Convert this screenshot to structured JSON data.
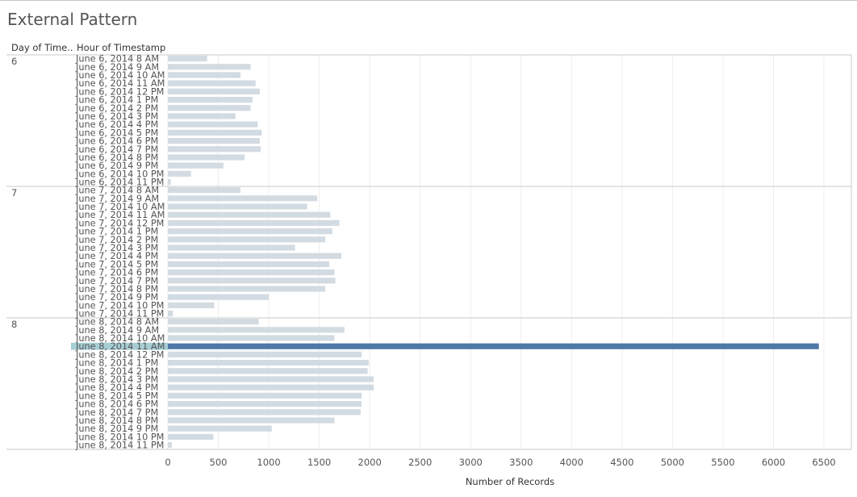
{
  "title": "External Pattern",
  "headers": {
    "day": "Day of Time..",
    "hour": "Hour of Timestamp"
  },
  "colors": {
    "bar": "#d3dbe2",
    "highlight_bar": "#4e79a7",
    "highlight_row": "#a6cdd4",
    "grid": "#eeeeee",
    "divider": "#c8c8c8"
  },
  "chart_data": {
    "type": "bar",
    "orientation": "horizontal",
    "xlabel": "Number of Records",
    "xlim": [
      0,
      6500
    ],
    "xticks": [
      0,
      500,
      1000,
      1500,
      2000,
      2500,
      3000,
      3500,
      4000,
      4500,
      5000,
      5500,
      6000,
      6500
    ],
    "grid": true,
    "groups": [
      {
        "day": "6",
        "rows": [
          {
            "label": "June 6, 2014 8 AM",
            "value": 390
          },
          {
            "label": "June 6, 2014 9 AM",
            "value": 820
          },
          {
            "label": "June 6, 2014 10 AM",
            "value": 720
          },
          {
            "label": "June 6, 2014 11 AM",
            "value": 870
          },
          {
            "label": "June 6, 2014 12 PM",
            "value": 910
          },
          {
            "label": "June 6, 2014 1 PM",
            "value": 840
          },
          {
            "label": "June 6, 2014 2 PM",
            "value": 820
          },
          {
            "label": "June 6, 2014 3 PM",
            "value": 670
          },
          {
            "label": "June 6, 2014 4 PM",
            "value": 890
          },
          {
            "label": "June 6, 2014 5 PM",
            "value": 930
          },
          {
            "label": "June 6, 2014 6 PM",
            "value": 910
          },
          {
            "label": "June 6, 2014 7 PM",
            "value": 920
          },
          {
            "label": "June 6, 2014 8 PM",
            "value": 760
          },
          {
            "label": "June 6, 2014 9 PM",
            "value": 550
          },
          {
            "label": "June 6, 2014 10 PM",
            "value": 230
          },
          {
            "label": "June 6, 2014 11 PM",
            "value": 30
          }
        ]
      },
      {
        "day": "7",
        "rows": [
          {
            "label": "June 7, 2014 8 AM",
            "value": 720
          },
          {
            "label": "June 7, 2014 9 AM",
            "value": 1480
          },
          {
            "label": "June 7, 2014 10 AM",
            "value": 1380
          },
          {
            "label": "June 7, 2014 11 AM",
            "value": 1610
          },
          {
            "label": "June 7, 2014 12 PM",
            "value": 1700
          },
          {
            "label": "June 7, 2014 1 PM",
            "value": 1630
          },
          {
            "label": "June 7, 2014 2 PM",
            "value": 1560
          },
          {
            "label": "June 7, 2014 3 PM",
            "value": 1260
          },
          {
            "label": "June 7, 2014 4 PM",
            "value": 1720
          },
          {
            "label": "June 7, 2014 5 PM",
            "value": 1600
          },
          {
            "label": "June 7, 2014 6 PM",
            "value": 1650
          },
          {
            "label": "June 7, 2014 7 PM",
            "value": 1660
          },
          {
            "label": "June 7, 2014 8 PM",
            "value": 1560
          },
          {
            "label": "June 7, 2014 9 PM",
            "value": 1000
          },
          {
            "label": "June 7, 2014 10 PM",
            "value": 460
          },
          {
            "label": "June 7, 2014 11 PM",
            "value": 50
          }
        ]
      },
      {
        "day": "8",
        "rows": [
          {
            "label": "June 8, 2014 8 AM",
            "value": 900
          },
          {
            "label": "June 8, 2014 9 AM",
            "value": 1750
          },
          {
            "label": "June 8, 2014 10 AM",
            "value": 1650
          },
          {
            "label": "June 8, 2014 11 AM",
            "value": 6450,
            "highlighted": true
          },
          {
            "label": "June 8, 2014 12 PM",
            "value": 1920
          },
          {
            "label": "June 8, 2014 1 PM",
            "value": 1990
          },
          {
            "label": "June 8, 2014 2 PM",
            "value": 1980
          },
          {
            "label": "June 8, 2014 3 PM",
            "value": 2040
          },
          {
            "label": "June 8, 2014 4 PM",
            "value": 2040
          },
          {
            "label": "June 8, 2014 5 PM",
            "value": 1920
          },
          {
            "label": "June 8, 2014 6 PM",
            "value": 1920
          },
          {
            "label": "June 8, 2014 7 PM",
            "value": 1910
          },
          {
            "label": "June 8, 2014 8 PM",
            "value": 1650
          },
          {
            "label": "June 8, 2014 9 PM",
            "value": 1030
          },
          {
            "label": "June 8, 2014 10 PM",
            "value": 450
          },
          {
            "label": "June 8, 2014 11 PM",
            "value": 40
          }
        ]
      }
    ]
  }
}
